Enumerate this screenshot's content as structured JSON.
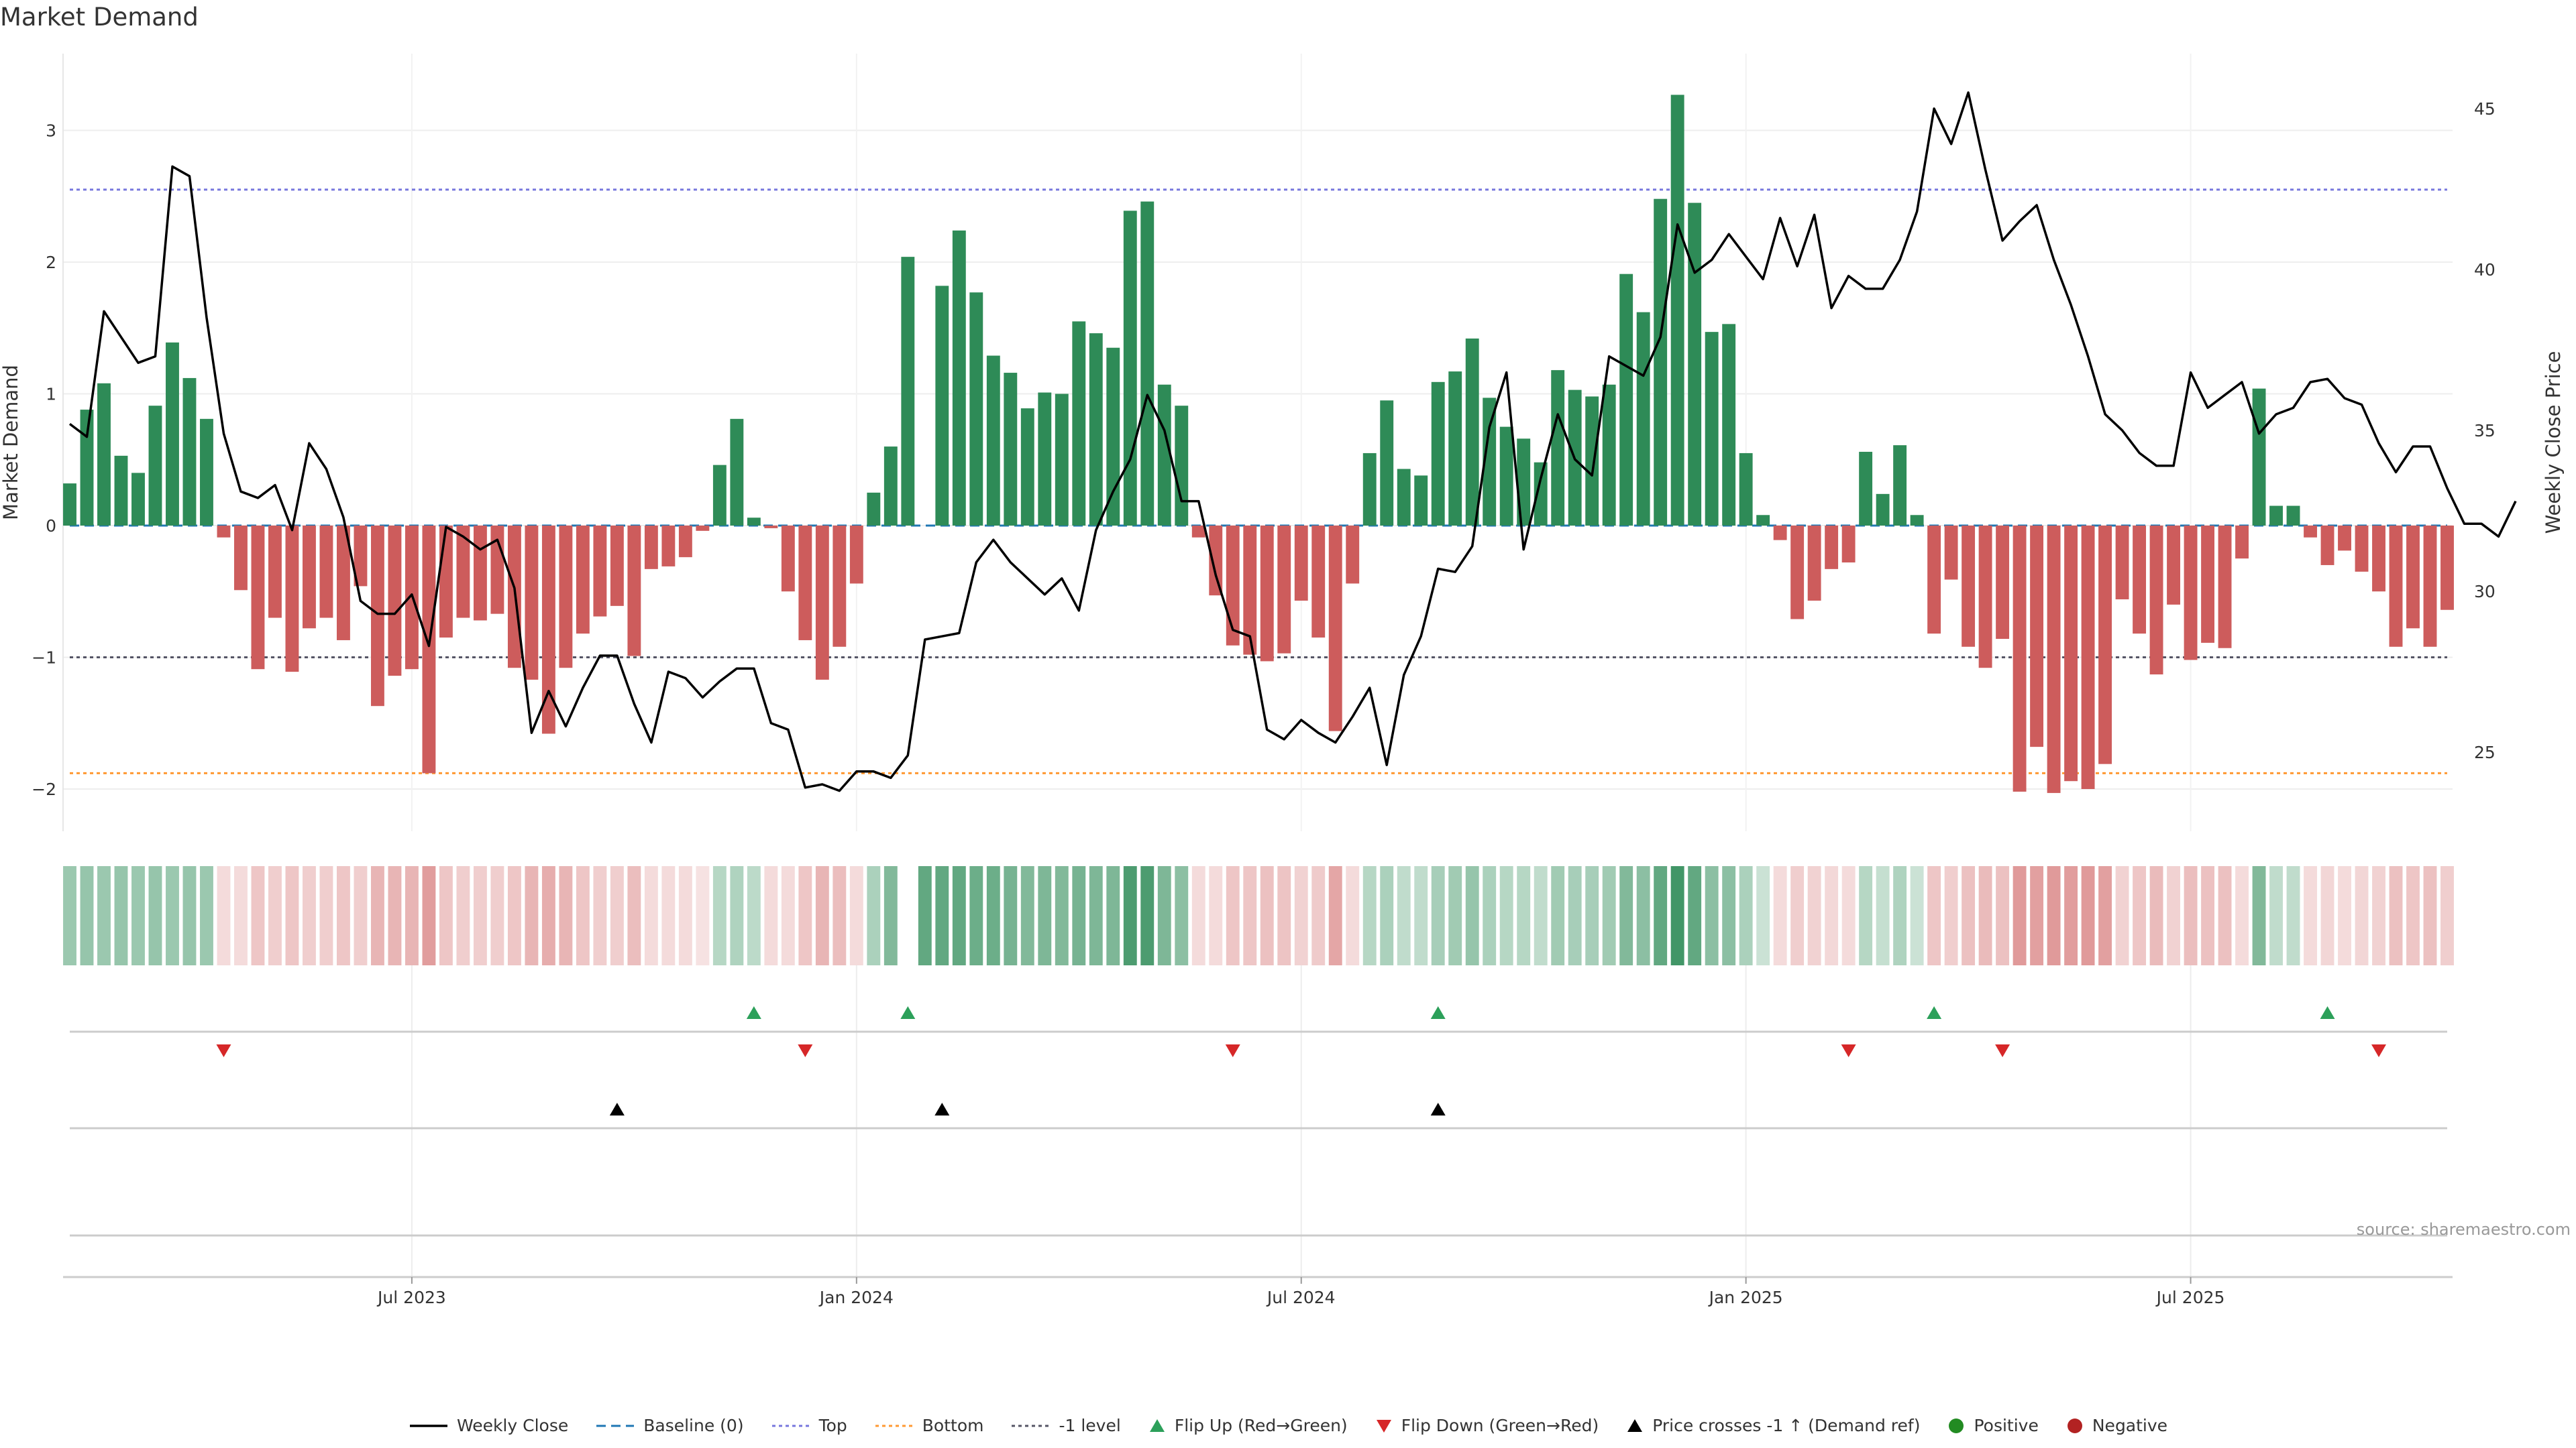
{
  "title": "Market Demand",
  "source_note": "source: sharemaestro.com",
  "colors": {
    "positive": "#2e8b57",
    "negative": "#cd5c5c",
    "price": "#000000",
    "baseline": "#1f77b4",
    "top": "#7777dd",
    "bottom": "#ff9933",
    "minus_one": "#555566",
    "flip_up": "#2ca05a",
    "flip_down": "#d62728",
    "cross": "#000000",
    "dot_positive": "#228b22",
    "dot_negative": "#b22222"
  },
  "chart_data": {
    "type": "bar",
    "title": "Market Demand",
    "ylabel": "Market Demand",
    "y2label": "Weekly Close Price",
    "ylim": [
      -2.3,
      3.5
    ],
    "y2lim": [
      23.5,
      47.5
    ],
    "yticks": [
      3,
      2,
      1,
      0,
      -1,
      -2
    ],
    "y2ticks": [
      45,
      40,
      35,
      30,
      25
    ],
    "xticks": [
      {
        "label": "Jul 2023",
        "index": 20
      },
      {
        "label": "Jan 2024",
        "index": 46
      },
      {
        "label": "Jul 2024",
        "index": 72
      },
      {
        "label": "Jan 2025",
        "index": 98
      },
      {
        "label": "Jul 2025",
        "index": 124
      }
    ],
    "reference_lines": {
      "baseline": 0,
      "top": 2.55,
      "bottom": -1.88,
      "minus_one": -1
    },
    "demand": [
      0.32,
      0.88,
      1.08,
      0.53,
      0.4,
      0.91,
      1.39,
      1.12,
      0.81,
      -0.09,
      -0.49,
      -1.09,
      -0.7,
      -1.11,
      -0.78,
      -0.7,
      -0.87,
      -0.46,
      -1.37,
      -1.14,
      -1.09,
      -1.88,
      -0.85,
      -0.7,
      -0.72,
      -0.67,
      -1.08,
      -1.17,
      -1.58,
      -1.08,
      -0.82,
      -0.69,
      -0.61,
      -0.99,
      -0.33,
      -0.31,
      -0.24,
      -0.04,
      0.46,
      0.81,
      0.06,
      -0.02,
      -0.5,
      -0.87,
      -1.17,
      -0.92,
      -0.44,
      0.25,
      0.6,
      2.04,
      0.0,
      1.82,
      2.24,
      1.77,
      1.29,
      1.16,
      0.89,
      1.01,
      1.0,
      1.55,
      1.46,
      1.35,
      2.39,
      2.46,
      1.07,
      0.91,
      -0.09,
      -0.53,
      -0.91,
      -0.98,
      -1.03,
      -0.97,
      -0.57,
      -0.85,
      -1.56,
      -0.44,
      0.55,
      0.95,
      0.43,
      0.38,
      1.09,
      1.17,
      1.42,
      0.97,
      0.75,
      0.66,
      0.48,
      1.18,
      1.03,
      0.98,
      1.07,
      1.91,
      1.62,
      2.48,
      3.27,
      2.45,
      1.47,
      1.53,
      0.55,
      0.08,
      -0.11,
      -0.71,
      -0.57,
      -0.33,
      -0.28,
      0.56,
      0.24,
      0.61,
      0.08,
      -0.82,
      -0.41,
      -0.92,
      -1.08,
      -0.86,
      -2.02,
      -1.68,
      -2.03,
      -1.94,
      -2.0,
      -1.81,
      -0.56,
      -0.82,
      -1.13,
      -0.6,
      -1.02,
      -0.89,
      -0.93,
      -0.25,
      1.04,
      0.15,
      0.15,
      -0.09,
      -0.3,
      -0.19,
      -0.35,
      -0.5,
      -0.92,
      -0.78,
      -0.92,
      -0.64
    ],
    "price": [
      35.2,
      34.8,
      38.7,
      37.9,
      37.1,
      37.3,
      43.2,
      42.9,
      38.5,
      34.9,
      33.1,
      32.9,
      33.3,
      31.9,
      34.6,
      33.8,
      32.3,
      29.7,
      29.3,
      29.3,
      29.9,
      28.3,
      32.0,
      31.7,
      31.3,
      31.6,
      30.1,
      25.6,
      26.9,
      25.8,
      27.0,
      28.0,
      28.0,
      26.5,
      25.3,
      27.5,
      27.3,
      26.7,
      27.2,
      27.6,
      27.6,
      25.9,
      25.7,
      23.9,
      24.0,
      23.8,
      24.4,
      24.4,
      24.2,
      24.9,
      28.5,
      28.6,
      28.7,
      30.9,
      31.6,
      30.9,
      30.4,
      29.9,
      30.4,
      29.4,
      31.9,
      33.1,
      34.1,
      36.1,
      35.0,
      32.8,
      32.8,
      30.5,
      28.8,
      28.6,
      25.7,
      25.4,
      26.0,
      25.6,
      25.3,
      26.1,
      27.0,
      24.6,
      27.4,
      28.6,
      30.7,
      30.6,
      31.4,
      35.1,
      36.8,
      31.3,
      33.5,
      35.5,
      34.1,
      33.6,
      37.3,
      37.0,
      36.7,
      37.9,
      41.4,
      39.9,
      40.3,
      41.1,
      40.4,
      39.7,
      41.6,
      40.1,
      41.7,
      38.8,
      39.8,
      39.4,
      39.4,
      40.3,
      41.8,
      45.0,
      43.9,
      45.5,
      43.1,
      40.9,
      41.5,
      42.0,
      40.3,
      38.9,
      37.3,
      35.5,
      35.0,
      34.3,
      33.9,
      33.9,
      36.8,
      35.7,
      36.1,
      36.5,
      34.9,
      35.5,
      35.7,
      36.5,
      36.6,
      36.0,
      35.8,
      34.6,
      33.7,
      34.5,
      34.5,
      33.2,
      32.1,
      32.1,
      31.7,
      32.8
    ],
    "shading_alpha": [
      0.48,
      0.5,
      0.48,
      0.5,
      0.48,
      0.5,
      0.48,
      0.5,
      0.48,
      0.22,
      0.22,
      0.35,
      0.3,
      0.35,
      0.3,
      0.3,
      0.35,
      0.3,
      0.45,
      0.45,
      0.45,
      0.6,
      0.35,
      0.3,
      0.3,
      0.3,
      0.35,
      0.45,
      0.5,
      0.45,
      0.35,
      0.3,
      0.3,
      0.4,
      0.22,
      0.22,
      0.22,
      0.18,
      0.35,
      0.38,
      0.32,
      0.22,
      0.22,
      0.35,
      0.45,
      0.4,
      0.22,
      0.4,
      0.6,
      0.0,
      0.75,
      0.75,
      0.75,
      0.7,
      0.7,
      0.65,
      0.6,
      0.62,
      0.6,
      0.65,
      0.62,
      0.62,
      0.85,
      0.85,
      0.62,
      0.55,
      0.22,
      0.22,
      0.35,
      0.35,
      0.38,
      0.36,
      0.28,
      0.32,
      0.55,
      0.22,
      0.35,
      0.4,
      0.3,
      0.3,
      0.42,
      0.45,
      0.5,
      0.4,
      0.35,
      0.35,
      0.3,
      0.45,
      0.42,
      0.42,
      0.45,
      0.6,
      0.55,
      0.75,
      0.9,
      0.75,
      0.55,
      0.55,
      0.4,
      0.25,
      0.22,
      0.3,
      0.28,
      0.24,
      0.22,
      0.35,
      0.28,
      0.38,
      0.25,
      0.35,
      0.3,
      0.38,
      0.42,
      0.38,
      0.62,
      0.58,
      0.62,
      0.6,
      0.62,
      0.58,
      0.28,
      0.35,
      0.42,
      0.28,
      0.4,
      0.38,
      0.38,
      0.22,
      0.6,
      0.3,
      0.3,
      0.22,
      0.25,
      0.22,
      0.25,
      0.28,
      0.38,
      0.35,
      0.38,
      0.3
    ],
    "flip_up_indices": [
      40,
      49,
      80,
      109,
      132
    ],
    "flip_down_indices": [
      9,
      43,
      68,
      104,
      113,
      135
    ],
    "cross_indices": [
      32,
      51,
      80
    ],
    "legend": [
      {
        "key": "weekly_close",
        "label": "Weekly Close"
      },
      {
        "key": "baseline",
        "label": "Baseline (0)"
      },
      {
        "key": "top",
        "label": "Top"
      },
      {
        "key": "bottom",
        "label": "Bottom"
      },
      {
        "key": "minus_one",
        "label": "-1 level"
      },
      {
        "key": "flip_up",
        "label": "Flip Up (Red→Green)"
      },
      {
        "key": "flip_down",
        "label": "Flip Down (Green→Red)"
      },
      {
        "key": "cross",
        "label": "Price crosses -1 ↑ (Demand ref)"
      },
      {
        "key": "positive",
        "label": "Positive"
      },
      {
        "key": "negative",
        "label": "Negative"
      }
    ]
  }
}
